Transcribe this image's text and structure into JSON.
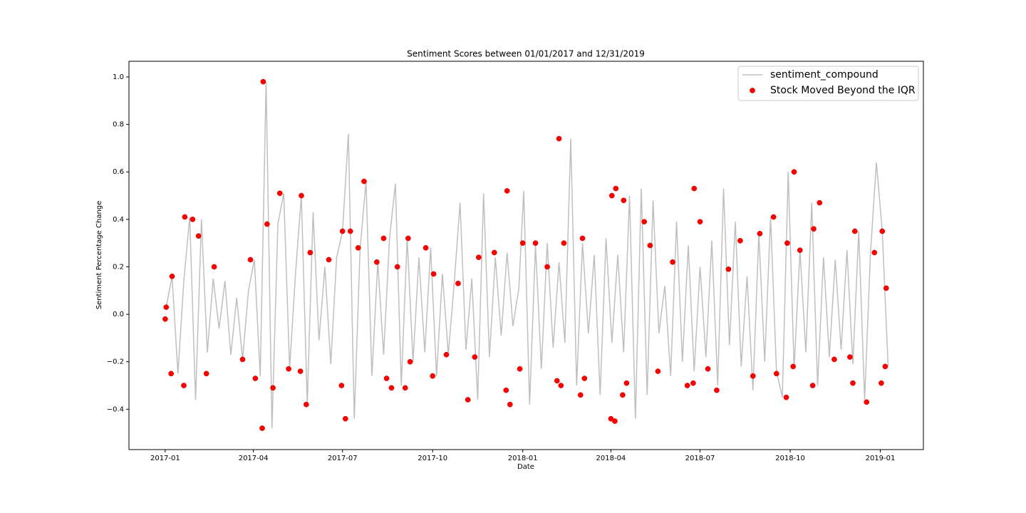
{
  "chart_data": {
    "type": "line",
    "title": "Sentiment Scores between 01/01/2017 and 12/31/2019",
    "xlabel": "Date",
    "ylabel": "Sentiment Percentage Change",
    "xlim": [
      "2016-11-25",
      "2019-02-14"
    ],
    "xticks": [
      {
        "value": "2017-01-01",
        "label": "2017-01"
      },
      {
        "value": "2017-04-01",
        "label": "2017-04"
      },
      {
        "value": "2017-07-01",
        "label": "2017-07"
      },
      {
        "value": "2017-10-01",
        "label": "2017-10"
      },
      {
        "value": "2018-01-01",
        "label": "2018-01"
      },
      {
        "value": "2018-04-01",
        "label": "2018-04"
      },
      {
        "value": "2018-07-01",
        "label": "2018-07"
      },
      {
        "value": "2018-10-01",
        "label": "2018-10"
      },
      {
        "value": "2019-01-01",
        "label": "2019-01"
      }
    ],
    "ylim": [
      -0.57,
      1.066
    ],
    "yticks": [
      {
        "value": -0.4,
        "label": "−0.4"
      },
      {
        "value": -0.2,
        "label": "−0.2"
      },
      {
        "value": 0,
        "label": "0.0"
      },
      {
        "value": 0.2,
        "label": "0.2"
      },
      {
        "value": 0.4,
        "label": "0.4"
      },
      {
        "value": 0.6,
        "label": "0.6"
      },
      {
        "value": 0.8,
        "label": "0.8"
      },
      {
        "value": 1,
        "label": "1.0"
      }
    ],
    "legend": "upper right",
    "x": [
      "2017-01-02",
      "2017-01-08",
      "2017-01-14",
      "2017-01-20",
      "2017-01-26",
      "2017-02-01",
      "2017-02-07",
      "2017-02-13",
      "2017-02-19",
      "2017-02-25",
      "2017-03-03",
      "2017-03-09",
      "2017-03-15",
      "2017-03-21",
      "2017-03-27",
      "2017-04-02",
      "2017-04-08",
      "2017-04-14",
      "2017-04-20",
      "2017-04-26",
      "2017-05-02",
      "2017-05-08",
      "2017-05-14",
      "2017-05-20",
      "2017-05-26",
      "2017-06-01",
      "2017-06-07",
      "2017-06-13",
      "2017-06-19",
      "2017-06-25",
      "2017-07-01",
      "2017-07-07",
      "2017-07-13",
      "2017-07-19",
      "2017-07-25",
      "2017-07-31",
      "2017-08-06",
      "2017-08-12",
      "2017-08-18",
      "2017-08-24",
      "2017-08-30",
      "2017-09-05",
      "2017-09-11",
      "2017-09-17",
      "2017-09-23",
      "2017-09-29",
      "2017-10-05",
      "2017-10-11",
      "2017-10-17",
      "2017-10-23",
      "2017-10-29",
      "2017-11-04",
      "2017-11-10",
      "2017-11-16",
      "2017-11-22",
      "2017-11-28",
      "2017-12-04",
      "2017-12-10",
      "2017-12-16",
      "2017-12-22",
      "2017-12-28",
      "2018-01-02",
      "2018-01-08",
      "2018-01-14",
      "2018-01-20",
      "2018-01-26",
      "2018-02-01",
      "2018-02-07",
      "2018-02-13",
      "2018-02-19",
      "2018-02-25",
      "2018-03-03",
      "2018-03-09",
      "2018-03-15",
      "2018-03-21",
      "2018-03-27",
      "2018-04-02",
      "2018-04-08",
      "2018-04-14",
      "2018-04-20",
      "2018-04-26",
      "2018-05-02",
      "2018-05-08",
      "2018-05-14",
      "2018-05-20",
      "2018-05-26",
      "2018-06-01",
      "2018-06-07",
      "2018-06-13",
      "2018-06-19",
      "2018-06-25",
      "2018-07-01",
      "2018-07-07",
      "2018-07-13",
      "2018-07-19",
      "2018-07-25",
      "2018-07-31",
      "2018-08-06",
      "2018-08-12",
      "2018-08-18",
      "2018-08-24",
      "2018-08-30",
      "2018-09-05",
      "2018-09-11",
      "2018-09-17",
      "2018-09-23",
      "2018-09-29",
      "2018-10-05",
      "2018-10-11",
      "2018-10-17",
      "2018-10-23",
      "2018-10-29",
      "2018-11-04",
      "2018-11-10",
      "2018-11-16",
      "2018-11-22",
      "2018-11-28",
      "2018-12-04",
      "2018-12-10",
      "2018-12-16",
      "2018-12-22",
      "2018-12-28",
      "2019-01-03",
      "2019-01-09"
    ],
    "series": [
      {
        "name": "sentiment_compound",
        "type": "line",
        "color": "#bfbfbf",
        "values": [
          0.03,
          0.16,
          -0.25,
          0.14,
          0.41,
          -0.36,
          0.4,
          -0.16,
          0.15,
          -0.06,
          0.14,
          -0.17,
          0.07,
          -0.19,
          0.1,
          0.23,
          -0.26,
          0.98,
          -0.48,
          0.38,
          0.51,
          -0.23,
          0.17,
          0.5,
          -0.38,
          0.43,
          -0.11,
          0.2,
          -0.21,
          0.24,
          0.35,
          0.76,
          -0.44,
          0.28,
          0.56,
          -0.26,
          0.22,
          -0.17,
          0.32,
          0.55,
          -0.3,
          0.32,
          -0.2,
          0.24,
          -0.16,
          0.28,
          -0.26,
          0.17,
          -0.17,
          0.13,
          0.47,
          -0.15,
          0.15,
          -0.36,
          0.51,
          -0.18,
          0.24,
          -0.09,
          0.26,
          -0.05,
          0.11,
          0.52,
          -0.38,
          0.29,
          -0.23,
          0.3,
          -0.14,
          0.22,
          -0.12,
          0.74,
          -0.3,
          0.3,
          -0.08,
          0.25,
          -0.34,
          0.32,
          -0.12,
          0.25,
          -0.16,
          0.5,
          -0.44,
          0.53,
          -0.34,
          0.48,
          -0.08,
          0.12,
          -0.26,
          0.39,
          -0.2,
          0.29,
          -0.24,
          0.2,
          -0.18,
          0.31,
          -0.3,
          0.53,
          -0.13,
          0.39,
          -0.22,
          0.16,
          -0.32,
          0.34,
          -0.2,
          0.41,
          -0.24,
          -0.35,
          0.6,
          -0.23,
          0.27,
          -0.16,
          0.47,
          -0.3,
          0.24,
          -0.18,
          0.23,
          -0.15,
          0.27,
          -0.21,
          0.35,
          -0.36,
          0.26,
          0.64,
          0.35,
          -0.22
        ]
      },
      {
        "name": "Stock Moved Beyond the IQR",
        "type": "scatter",
        "color": "#ff0000",
        "x": [
          "2017-01-01",
          "2017-01-02",
          "2017-01-07",
          "2017-01-08",
          "2017-01-20",
          "2017-01-21",
          "2017-01-29",
          "2017-02-04",
          "2017-02-12",
          "2017-02-20",
          "2017-03-21",
          "2017-03-29",
          "2017-04-03",
          "2017-04-10",
          "2017-04-11",
          "2017-04-15",
          "2017-04-21",
          "2017-04-28",
          "2017-05-07",
          "2017-05-19",
          "2017-05-20",
          "2017-05-25",
          "2017-05-29",
          "2017-06-17",
          "2017-06-30",
          "2017-07-01",
          "2017-07-04",
          "2017-07-09",
          "2017-07-17",
          "2017-07-23",
          "2017-08-05",
          "2017-08-12",
          "2017-08-15",
          "2017-08-20",
          "2017-08-26",
          "2017-09-03",
          "2017-09-06",
          "2017-09-08",
          "2017-09-24",
          "2017-10-01",
          "2017-10-02",
          "2017-10-15",
          "2017-10-27",
          "2017-11-06",
          "2017-11-13",
          "2017-11-17",
          "2017-12-03",
          "2017-12-15",
          "2017-12-16",
          "2017-12-19",
          "2017-12-29",
          "2018-01-01",
          "2018-01-14",
          "2018-01-26",
          "2018-02-05",
          "2018-02-07",
          "2018-02-09",
          "2018-02-12",
          "2018-03-01",
          "2018-03-03",
          "2018-03-05",
          "2018-04-01",
          "2018-04-02",
          "2018-04-05",
          "2018-04-06",
          "2018-04-13",
          "2018-04-14",
          "2018-04-17",
          "2018-05-05",
          "2018-05-11",
          "2018-05-19",
          "2018-06-03",
          "2018-06-18",
          "2018-06-24",
          "2018-06-25",
          "2018-07-01",
          "2018-07-09",
          "2018-07-18",
          "2018-07-30",
          "2018-08-11",
          "2018-08-24",
          "2018-08-31",
          "2018-09-14",
          "2018-09-17",
          "2018-09-27",
          "2018-09-28",
          "2018-10-04",
          "2018-10-05",
          "2018-10-11",
          "2018-10-24",
          "2018-10-25",
          "2018-10-31",
          "2018-11-15",
          "2018-12-01",
          "2018-12-04",
          "2018-12-06",
          "2018-12-18",
          "2018-12-26",
          "2019-01-02",
          "2019-01-03",
          "2019-01-06",
          "2019-01-07"
        ],
        "values": [
          -0.02,
          0.03,
          -0.25,
          0.16,
          -0.3,
          0.41,
          0.4,
          0.33,
          -0.25,
          0.2,
          -0.19,
          0.23,
          -0.27,
          -0.48,
          0.98,
          0.38,
          -0.31,
          0.51,
          -0.23,
          -0.24,
          0.5,
          -0.38,
          0.26,
          0.23,
          -0.3,
          0.35,
          -0.44,
          0.35,
          0.28,
          0.56,
          0.22,
          0.32,
          -0.27,
          -0.31,
          0.2,
          -0.31,
          0.32,
          -0.2,
          0.28,
          -0.26,
          0.17,
          -0.17,
          0.13,
          -0.36,
          -0.18,
          0.24,
          0.26,
          -0.32,
          0.52,
          -0.38,
          -0.23,
          0.3,
          0.3,
          0.2,
          -0.28,
          0.74,
          -0.3,
          0.3,
          -0.34,
          0.32,
          -0.27,
          -0.44,
          0.5,
          -0.45,
          0.53,
          -0.34,
          0.48,
          -0.29,
          0.39,
          0.29,
          -0.24,
          0.22,
          -0.3,
          -0.29,
          0.53,
          0.39,
          -0.23,
          -0.32,
          0.19,
          0.31,
          -0.26,
          0.34,
          0.41,
          -0.25,
          -0.35,
          0.3,
          -0.22,
          0.6,
          0.27,
          -0.3,
          0.36,
          0.47,
          -0.19,
          -0.18,
          -0.29,
          0.35,
          -0.37,
          0.26,
          -0.29,
          0.35,
          -0.22,
          0.11
        ]
      }
    ]
  }
}
